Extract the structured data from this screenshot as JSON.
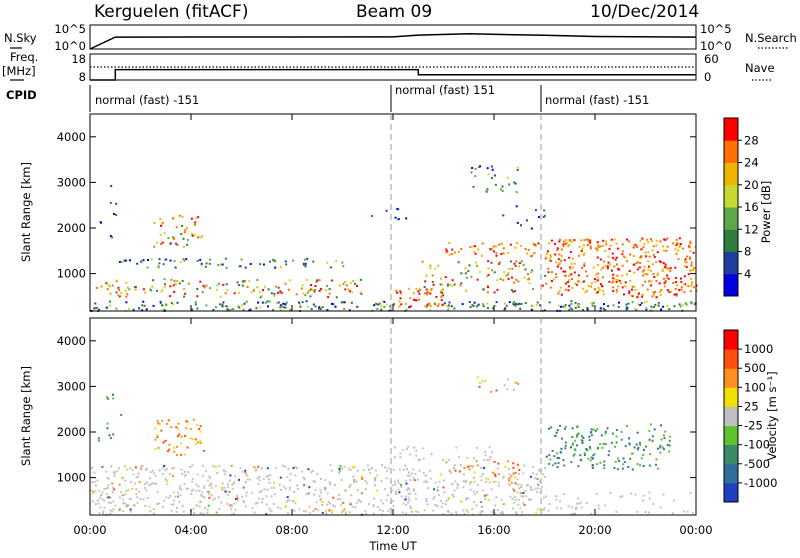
{
  "header": {
    "station": "Kerguelen (fitACF)",
    "beam": "Beam 09",
    "date": "10/Dec/2014"
  },
  "top_panels": {
    "nsky_label": "N.Sky",
    "nsky_ticks": [
      "10^5",
      "10^0"
    ],
    "nsearch_label": "N.Search",
    "nsearch_ticks": [
      "10^5",
      "10^0"
    ],
    "freq_label_1": "Freq.",
    "freq_label_2": "[MHz]",
    "freq_ticks": [
      "18",
      "8"
    ],
    "nave_label": "Nave",
    "nave_ticks": [
      "60",
      "0"
    ],
    "cpid_label": "CPID",
    "modes": [
      {
        "text": "normal (fast) -151",
        "start_h": 0
      },
      {
        "text": "normal (fast) 151",
        "start_h": 12
      },
      {
        "text": "normal (fast) -151",
        "start_h": 18
      }
    ]
  },
  "power_panel": {
    "ylabel": "Slant Range [km]",
    "yticks": [
      "4000",
      "3000",
      "2000",
      "1000"
    ],
    "cbar_label": "Power [dB]",
    "cbar_ticks": [
      "28",
      "24",
      "20",
      "16",
      "12",
      "8",
      "4"
    ],
    "cbar_colors": [
      "#0000e0",
      "#1f3fa0",
      "#2e7d3a",
      "#5fa84a",
      "#c8d832",
      "#f0b400",
      "#ff7000",
      "#ff0000"
    ]
  },
  "velocity_panel": {
    "ylabel": "Slant Range [km]",
    "yticks": [
      "4000",
      "3000",
      "2000",
      "1000"
    ],
    "cbar_label": "Velocity [m s⁻¹]",
    "cbar_ticks": [
      "1000",
      "500",
      "100",
      "25",
      "-25",
      "-100",
      "-500",
      "-1000"
    ],
    "cbar_colors": [
      "#2040c0",
      "#2e6fa0",
      "#3a8a6a",
      "#5fc030",
      "#c0c0c0",
      "#f0e000",
      "#ff9020",
      "#ff5010",
      "#ff0000"
    ]
  },
  "time_axis": {
    "xlabel": "Time UT",
    "ticks": [
      "00:00",
      "04:00",
      "08:00",
      "12:00",
      "16:00",
      "20:00",
      "00:00"
    ]
  },
  "chart_data": [
    {
      "type": "line",
      "title": "Kerguelen (fitACF)",
      "series": [
        {
          "name": "N.Sky",
          "x": [
            "00:00",
            "01:00",
            "04:00",
            "08:00",
            "12:00",
            "13:00",
            "15:00",
            "18:00",
            "20:00",
            "24:00"
          ],
          "y": [
            1,
            300,
            320,
            310,
            330,
            800,
            1500,
            700,
            400,
            300
          ]
        },
        {
          "name": "Freq.",
          "x": [
            "00:00",
            "01:00",
            "13:00",
            "24:00"
          ],
          "y": [
            8,
            12,
            10,
            10
          ]
        },
        {
          "name": "Nave",
          "x": [
            "00:00",
            "24:00"
          ],
          "y": [
            33,
            33
          ]
        }
      ],
      "xlabel": "Time UT",
      "xlim": [
        "00:00",
        "24:00"
      ]
    },
    {
      "type": "heatmap",
      "title": "Power [dB]",
      "x": [
        "00:00",
        "04:00",
        "08:00",
        "12:00",
        "16:00",
        "20:00",
        "00:00"
      ],
      "ylabel": "Slant Range [km]",
      "ylim": [
        180,
        4500
      ],
      "colorbar": {
        "label": "Power [dB]",
        "ticks": [
          4,
          8,
          12,
          16,
          20,
          24,
          28
        ]
      }
    },
    {
      "type": "heatmap",
      "title": "Velocity [m s⁻¹]",
      "x": [
        "00:00",
        "04:00",
        "08:00",
        "12:00",
        "16:00",
        "20:00",
        "00:00"
      ],
      "ylabel": "Slant Range [km]",
      "ylim": [
        180,
        4500
      ],
      "colorbar": {
        "label": "Velocity [m s⁻¹]",
        "ticks": [
          1000,
          500,
          100,
          25,
          -25,
          -100,
          -500,
          -1000
        ]
      }
    }
  ]
}
